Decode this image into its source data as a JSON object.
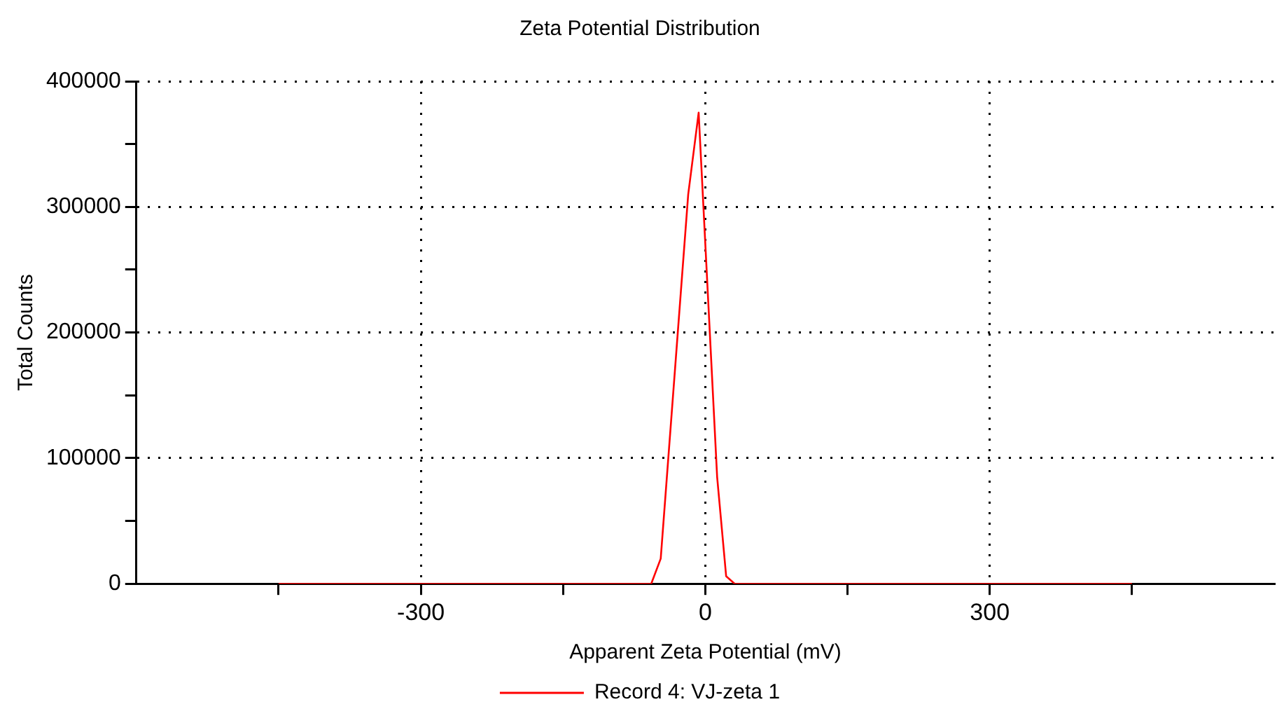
{
  "chart_data": {
    "type": "line",
    "title": "Zeta Potential Distribution",
    "xlabel": "Apparent Zeta Potential (mV)",
    "ylabel": "Total Counts",
    "x": [
      -450,
      -57,
      -47,
      -18,
      -7,
      12.5,
      22,
      31,
      450
    ],
    "series": [
      {
        "name": "Record 4: VJ-zeta 1",
        "color": "#ff0000",
        "values": [
          0,
          0,
          20000,
          310000,
          375000,
          85000,
          6000,
          0,
          0
        ]
      }
    ],
    "xlim": [
      -600,
      600
    ],
    "xticks": [
      {
        "value": -450,
        "label": null
      },
      -300,
      {
        "value": -150,
        "label": null
      },
      0,
      {
        "value": 150,
        "label": null
      },
      300,
      {
        "value": 450,
        "label": null
      }
    ],
    "ylim": [
      0,
      400000
    ],
    "yticks": [
      0,
      {
        "value": 50000,
        "label": null
      },
      100000,
      {
        "value": 150000,
        "label": null
      },
      200000,
      {
        "value": 250000,
        "label": null
      },
      300000,
      {
        "value": 350000,
        "label": null
      },
      400000
    ],
    "grid": true,
    "legend": "bottom",
    "marker": "none",
    "line_style": "solid"
  }
}
